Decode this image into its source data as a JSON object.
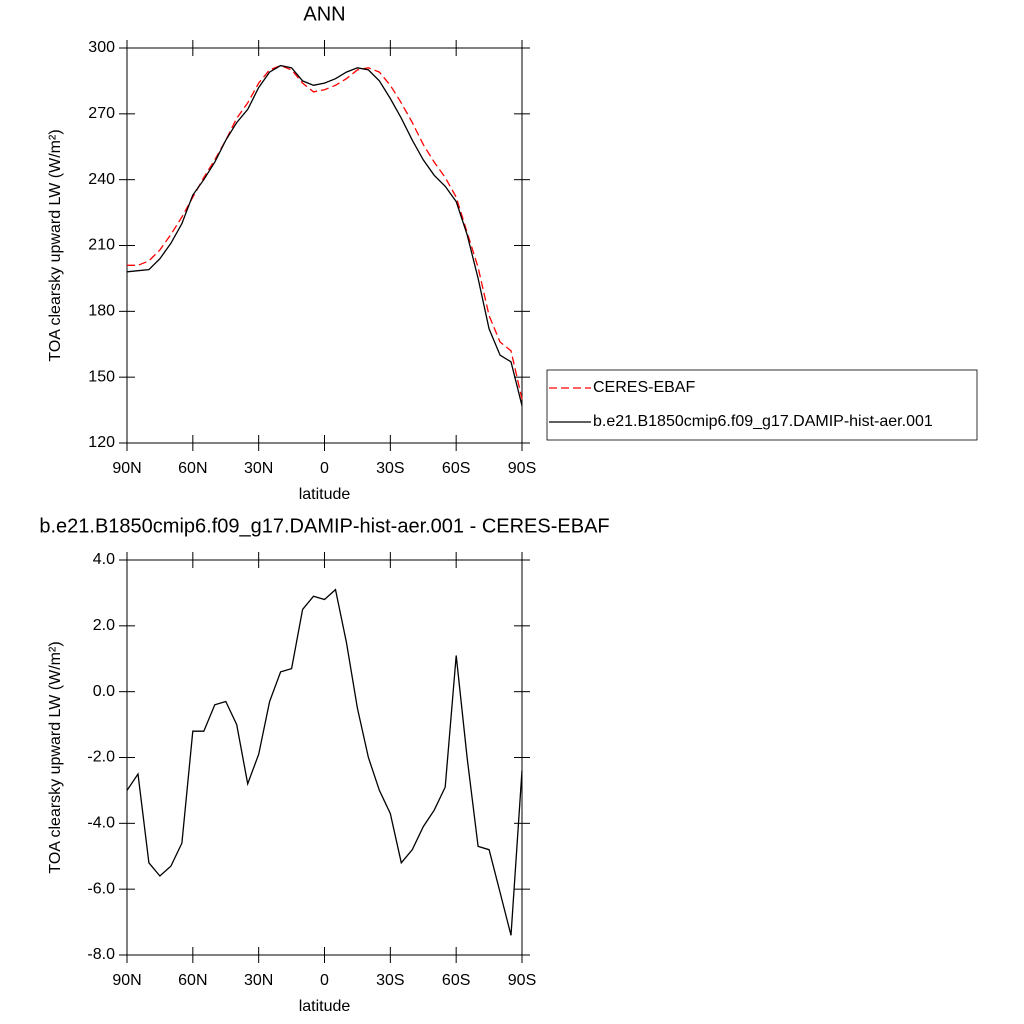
{
  "chart_data": [
    {
      "type": "line",
      "title": "ANN",
      "x_label": "latitude",
      "y_label": "TOA clearsky upward LW (W/m²)",
      "xlim": [
        90,
        -90
      ],
      "xticks": [
        {
          "value": 90,
          "label": "90N"
        },
        {
          "value": 60,
          "label": "60N"
        },
        {
          "value": 30,
          "label": "30N"
        },
        0,
        {
          "value": -30,
          "label": "30S"
        },
        {
          "value": -60,
          "label": "60S"
        },
        {
          "value": -90,
          "label": "90S"
        }
      ],
      "ylim": [
        120,
        300
      ],
      "yticks": [
        120,
        150,
        180,
        210,
        240,
        270,
        300
      ],
      "legend": "right",
      "x": [
        90,
        85,
        80,
        75,
        70,
        65,
        60,
        55,
        50,
        45,
        40,
        35,
        30,
        25,
        20,
        15,
        10,
        5,
        0,
        -5,
        -10,
        -15,
        -20,
        -25,
        -30,
        -35,
        -40,
        -45,
        -50,
        -55,
        -60,
        -65,
        -70,
        -75,
        -80,
        -85,
        -90
      ],
      "series": [
        {
          "name": "CERES-EBAF",
          "color": "#ff0000",
          "dashed": true,
          "values": [
            201,
            201,
            203,
            208,
            215,
            223,
            232,
            241,
            249,
            258,
            268,
            275,
            284,
            290,
            292,
            290,
            284,
            280,
            281,
            283,
            286,
            290,
            291,
            289,
            283,
            275,
            266,
            256,
            248,
            241,
            232,
            216,
            200,
            178,
            166,
            162,
            140
          ]
        },
        {
          "name": "b.e21.B1850cmip6.f09_g17.DAMIP-hist-aer.001",
          "color": "#000000",
          "dashed": false,
          "values": [
            198,
            198.5,
            199,
            204,
            211,
            220,
            233,
            240,
            248,
            258,
            266,
            272,
            282,
            289,
            292,
            291,
            285,
            283,
            284,
            286,
            289,
            291,
            290,
            285,
            277,
            268,
            258,
            249,
            242,
            237,
            230,
            215,
            195,
            172,
            160,
            157,
            137
          ]
        }
      ]
    },
    {
      "type": "line",
      "title": "b.e21.B1850cmip6.f09_g17.DAMIP-hist-aer.001 - CERES-EBAF",
      "x_label": "latitude",
      "y_label": "TOA clearsky upward LW (W/m²)",
      "xlim": [
        90,
        -90
      ],
      "xticks": [
        {
          "value": 90,
          "label": "90N"
        },
        {
          "value": 60,
          "label": "60N"
        },
        {
          "value": 30,
          "label": "30N"
        },
        0,
        {
          "value": -30,
          "label": "30S"
        },
        {
          "value": -60,
          "label": "60S"
        },
        {
          "value": -90,
          "label": "90S"
        }
      ],
      "ylim": [
        -8,
        4
      ],
      "yticks": [
        {
          "value": -8,
          "label": "-8.0"
        },
        {
          "value": -6,
          "label": "-6.0"
        },
        {
          "value": -4,
          "label": "-4.0"
        },
        {
          "value": -2,
          "label": "-2.0"
        },
        {
          "value": 0,
          "label": "0.0"
        },
        {
          "value": 2,
          "label": "2.0"
        },
        {
          "value": 4,
          "label": "4.0"
        }
      ],
      "x": [
        90,
        85,
        80,
        75,
        70,
        65,
        60,
        55,
        50,
        45,
        40,
        35,
        30,
        25,
        20,
        15,
        10,
        5,
        0,
        -5,
        -10,
        -15,
        -20,
        -25,
        -30,
        -35,
        -40,
        -45,
        -50,
        -55,
        -60,
        -65,
        -70,
        -75,
        -80,
        -85,
        -90
      ],
      "series": [
        {
          "color": "#000000",
          "dashed": false,
          "values": [
            -3.0,
            -2.5,
            -5.2,
            -5.6,
            -5.3,
            -4.6,
            -1.2,
            -1.2,
            -0.4,
            -0.3,
            -1.0,
            -2.8,
            -1.9,
            -0.3,
            0.6,
            0.7,
            2.5,
            2.9,
            2.8,
            3.1,
            1.5,
            -0.5,
            -2.0,
            -3.0,
            -3.7,
            -5.2,
            -4.8,
            -4.1,
            -3.6,
            -2.9,
            1.1,
            -2.0,
            -4.7,
            -4.8,
            -6.1,
            -7.4,
            -2.4
          ]
        }
      ]
    }
  ]
}
